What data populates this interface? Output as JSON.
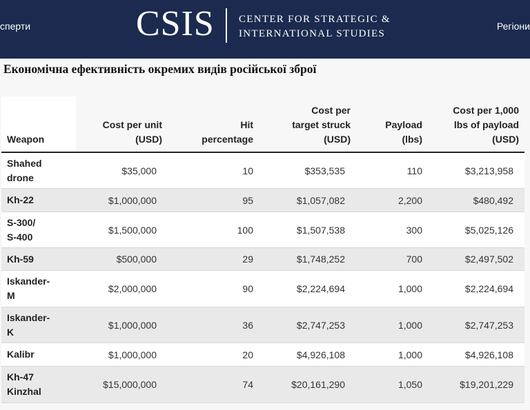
{
  "header": {
    "nav_left": "сперти",
    "nav_right": "Регіони",
    "logo_word": "CSIS",
    "logo_line1": "CENTER FOR STRATEGIC &",
    "logo_line2": "INTERNATIONAL STUDIES",
    "background": "#1b2a4e"
  },
  "title": "Економічна ефективність окремих видів російської зброї",
  "table": {
    "columns": {
      "weapon": "Weapon",
      "cost_unit": [
        "Cost per unit",
        "(USD)"
      ],
      "hit": [
        "Hit",
        "percentage"
      ],
      "cost_target": [
        "Cost per",
        "target struck",
        "(USD)"
      ],
      "payload": [
        "Payload",
        "(lbs)"
      ],
      "cost_payload": [
        "Cost per 1,000",
        "lbs of payload",
        "(USD)"
      ]
    },
    "rows": [
      {
        "weapon": [
          "Shahed",
          "drone"
        ],
        "cost_unit": "$35,000",
        "hit": "10",
        "cost_target": "$353,535",
        "payload": "110",
        "cost_payload": "$3,213,958"
      },
      {
        "weapon": [
          "Kh-22"
        ],
        "cost_unit": "$1,000,000",
        "hit": "95",
        "cost_target": "$1,057,082",
        "payload": "2,200",
        "cost_payload": "$480,492"
      },
      {
        "weapon": [
          "S-300/",
          "S-400"
        ],
        "cost_unit": "$1,500,000",
        "hit": "100",
        "cost_target": "$1,507,538",
        "payload": "300",
        "cost_payload": "$5,025,126"
      },
      {
        "weapon": [
          "Kh-59"
        ],
        "cost_unit": "$500,000",
        "hit": "29",
        "cost_target": "$1,748,252",
        "payload": "700",
        "cost_payload": "$2,497,502"
      },
      {
        "weapon": [
          "Iskander-",
          "M"
        ],
        "cost_unit": "$2,000,000",
        "hit": "90",
        "cost_target": "$2,224,694",
        "payload": "1,000",
        "cost_payload": "$2,224,694"
      },
      {
        "weapon": [
          "Iskander-",
          "K"
        ],
        "cost_unit": "$1,000,000",
        "hit": "36",
        "cost_target": "$2,747,253",
        "payload": "1,000",
        "cost_payload": "$2,747,253"
      },
      {
        "weapon": [
          "Kalibr"
        ],
        "cost_unit": "$1,000,000",
        "hit": "20",
        "cost_target": "$4,926,108",
        "payload": "1,000",
        "cost_payload": "$4,926,108"
      },
      {
        "weapon": [
          "Kh-47",
          "Kinzhal"
        ],
        "cost_unit": "$15,000,000",
        "hit": "74",
        "cost_target": "$20,161,290",
        "payload": "1,050",
        "cost_payload": "$19,201,229"
      }
    ]
  }
}
